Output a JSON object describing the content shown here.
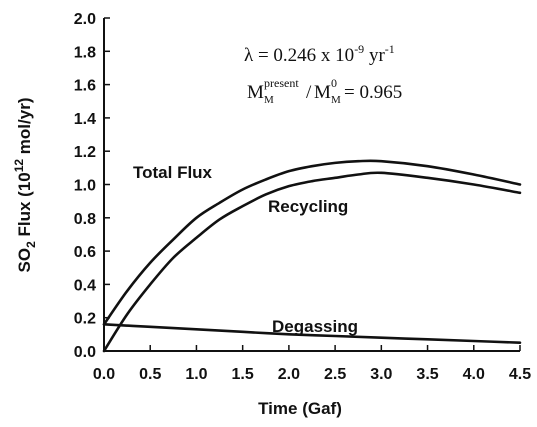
{
  "chart_data": {
    "type": "line",
    "xlabel": "Time (Gaf)",
    "ylabel": {
      "prefix": "SO",
      "sub": "2",
      "mid": " Flux (10",
      "sup": "12",
      "suffix": " mol/yr)"
    },
    "xlim": [
      0.0,
      4.5
    ],
    "ylim": [
      0.0,
      2.0
    ],
    "xticks": [
      0.0,
      0.5,
      1.0,
      1.5,
      2.0,
      2.5,
      3.0,
      3.5,
      4.0,
      4.5
    ],
    "xtick_labels": [
      "0.0",
      "0.5",
      "1.0",
      "1.5",
      "2.0",
      "2.5",
      "3.0",
      "3.5",
      "4.0",
      "4.5"
    ],
    "yticks": [
      0.0,
      0.2,
      0.4,
      0.6,
      0.8,
      1.0,
      1.2,
      1.4,
      1.6,
      1.8,
      2.0
    ],
    "ytick_labels": [
      "0.0",
      "0.2",
      "0.4",
      "0.6",
      "0.8",
      "1.0",
      "1.2",
      "1.4",
      "1.6",
      "1.8",
      "2.0"
    ],
    "grid": false,
    "series": [
      {
        "name": "Total Flux",
        "x": [
          0.0,
          0.25,
          0.5,
          0.75,
          1.0,
          1.25,
          1.5,
          1.75,
          2.0,
          2.25,
          2.5,
          2.75,
          3.0,
          3.5,
          4.0,
          4.5
        ],
        "y": [
          0.16,
          0.36,
          0.53,
          0.67,
          0.8,
          0.89,
          0.97,
          1.03,
          1.08,
          1.11,
          1.13,
          1.14,
          1.14,
          1.11,
          1.06,
          1.0
        ]
      },
      {
        "name": "Recycling",
        "x": [
          0.0,
          0.25,
          0.5,
          0.75,
          1.0,
          1.25,
          1.5,
          1.75,
          2.0,
          2.25,
          2.5,
          2.75,
          3.0,
          3.5,
          4.0,
          4.5
        ],
        "y": [
          0.0,
          0.22,
          0.4,
          0.56,
          0.68,
          0.79,
          0.87,
          0.94,
          0.99,
          1.02,
          1.04,
          1.06,
          1.07,
          1.04,
          1.0,
          0.95
        ]
      },
      {
        "name": "Degassing",
        "x": [
          0.0,
          0.5,
          1.0,
          1.5,
          2.0,
          2.5,
          3.0,
          3.5,
          4.0,
          4.5
        ],
        "y": [
          0.16,
          0.145,
          0.13,
          0.115,
          0.1,
          0.09,
          0.08,
          0.07,
          0.06,
          0.05
        ]
      }
    ],
    "annotations": {
      "lambda": {
        "prefix": "λ = 0.246 x 10",
        "sup": "-9",
        "suffix": " yr",
        "sup2": "-1"
      },
      "ratio": {
        "m1": "M",
        "m1_sub": "M",
        "m1_sup": "present",
        "slash": "/",
        "m2": "M",
        "m2_sub": "M",
        "m2_sup": "0",
        "suffix": " = 0.965"
      }
    }
  }
}
